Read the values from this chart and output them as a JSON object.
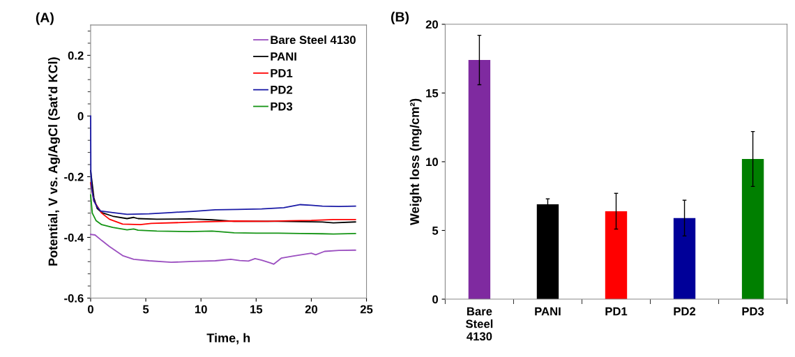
{
  "chart_data": [
    {
      "type": "line",
      "annotations": [
        "(A)"
      ],
      "xlabel": "Time, h",
      "ylabel": "Potential, V vs. Ag/AgCl (Sat'd KCl)",
      "xlim": [
        0,
        25
      ],
      "ylim": [
        -0.6,
        0.3
      ],
      "xticks": [
        0,
        5,
        10,
        15,
        20,
        25
      ],
      "yticks": [
        -0.6,
        -0.4,
        -0.2,
        0,
        0.2
      ],
      "legend": "top right",
      "grid": false,
      "marker": "none",
      "line_style": "solid",
      "series": [
        {
          "name": "Bare Steel 4130",
          "color": "#9b4fc0",
          "x": [
            0,
            0.4,
            1,
            1.7,
            2.9,
            3.9,
            5.3,
            7.3,
            9.3,
            11.3,
            12.7,
            13.5,
            14.3,
            14.9,
            15.5,
            16.3,
            16.6,
            17.3,
            18.3,
            19.3,
            20,
            20.4,
            21.2,
            22.5,
            24
          ],
          "values": [
            -0.39,
            -0.392,
            -0.41,
            -0.43,
            -0.46,
            -0.472,
            -0.477,
            -0.482,
            -0.479,
            -0.477,
            -0.472,
            -0.476,
            -0.478,
            -0.47,
            -0.475,
            -0.484,
            -0.488,
            -0.468,
            -0.462,
            -0.456,
            -0.452,
            -0.457,
            -0.446,
            -0.443,
            -0.442
          ]
        },
        {
          "name": "PANI",
          "color": "#000000",
          "x": [
            0,
            0.3,
            0.6,
            1,
            2,
            3.3,
            3.9,
            4.3,
            6,
            9,
            11,
            13,
            15,
            17,
            19,
            21,
            22,
            24
          ],
          "values": [
            -0.18,
            -0.27,
            -0.305,
            -0.318,
            -0.33,
            -0.338,
            -0.334,
            -0.338,
            -0.34,
            -0.339,
            -0.342,
            -0.347,
            -0.347,
            -0.347,
            -0.348,
            -0.349,
            -0.352,
            -0.349
          ]
        },
        {
          "name": "PD1",
          "color": "#ff0000",
          "x": [
            0,
            0.3,
            1,
            1.7,
            2.9,
            4.5,
            5.5,
            9,
            13,
            16,
            18,
            20,
            22,
            24
          ],
          "values": [
            -0.22,
            -0.28,
            -0.32,
            -0.34,
            -0.356,
            -0.358,
            -0.354,
            -0.35,
            -0.346,
            -0.347,
            -0.345,
            -0.344,
            -0.341,
            -0.341
          ]
        },
        {
          "name": "PD2",
          "color": "#1a1aa6",
          "x": [
            0,
            0.02,
            0.1,
            0.3,
            0.6,
            0.9,
            2,
            3.3,
            5.3,
            7.3,
            9.3,
            11.3,
            13.3,
            15.5,
            17.5,
            19,
            20,
            21,
            22.5,
            24
          ],
          "values": [
            0,
            -0.18,
            -0.24,
            -0.28,
            -0.3,
            -0.313,
            -0.318,
            -0.324,
            -0.322,
            -0.318,
            -0.314,
            -0.309,
            -0.308,
            -0.306,
            -0.302,
            -0.292,
            -0.294,
            -0.297,
            -0.298,
            -0.297
          ]
        },
        {
          "name": "PD3",
          "color": "#149414",
          "x": [
            0,
            0.15,
            0.5,
            1,
            2,
            3.3,
            3.9,
            4.3,
            6,
            9,
            11,
            13,
            15,
            17,
            19,
            21,
            22,
            24
          ],
          "values": [
            -0.26,
            -0.32,
            -0.345,
            -0.358,
            -0.367,
            -0.375,
            -0.372,
            -0.376,
            -0.379,
            -0.381,
            -0.379,
            -0.385,
            -0.386,
            -0.386,
            -0.387,
            -0.388,
            -0.389,
            -0.387
          ]
        }
      ]
    },
    {
      "type": "bar",
      "annotations": [
        "(B)"
      ],
      "ylabel": "Weight loss (mg/cm²)",
      "categories": [
        "Bare Steel 4130",
        "PANI",
        "PD1",
        "PD2",
        "PD3"
      ],
      "ylim": [
        0,
        20
      ],
      "yticks": [
        0,
        5,
        10,
        15,
        20
      ],
      "grid": false,
      "values": [
        17.4,
        6.9,
        6.4,
        5.9,
        10.2
      ],
      "errors": [
        1.8,
        0.4,
        1.3,
        1.3,
        2.0
      ],
      "colors": [
        "#7f2aa0",
        "#000000",
        "#ff0000",
        "#000099",
        "#007f00"
      ]
    }
  ]
}
